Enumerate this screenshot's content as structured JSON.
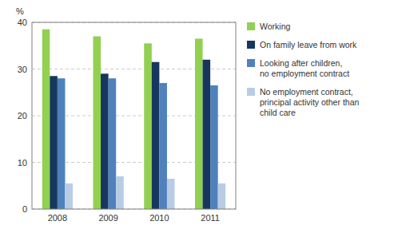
{
  "chart_data": {
    "type": "bar",
    "categories": [
      "2008",
      "2009",
      "2010",
      "2011"
    ],
    "series": [
      {
        "name": "Working",
        "color": "#92d050",
        "values": [
          38.5,
          37.0,
          35.5,
          36.5
        ]
      },
      {
        "name": "On family leave from work",
        "color": "#17375e",
        "values": [
          28.5,
          29.0,
          31.5,
          32.0
        ]
      },
      {
        "name": "Looking after children,\nno employment contract",
        "color": "#4f81bd",
        "values": [
          28.0,
          28.0,
          27.0,
          26.5
        ]
      },
      {
        "name": "No employment contract,\nprincipal activity other than\nchild care",
        "color": "#b8cce4",
        "values": [
          5.5,
          7.0,
          6.5,
          5.5
        ]
      }
    ],
    "ylabel": "%",
    "ylim": [
      0,
      40
    ],
    "yticks": [
      0,
      10,
      20,
      30,
      40
    ],
    "grid": true,
    "legend": "right"
  }
}
